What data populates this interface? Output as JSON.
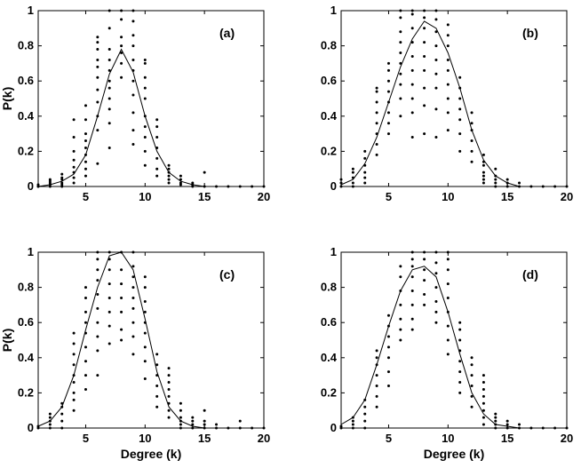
{
  "chart_data": [
    {
      "type": "scatter",
      "panel_label": "(a)",
      "xlabel": "",
      "ylabel": "P(k)",
      "xlim": [
        1,
        20
      ],
      "ylim": [
        0,
        1
      ],
      "xticks": [
        5,
        10,
        15,
        20
      ],
      "yticks": [
        0,
        0.2,
        0.4,
        0.6,
        0.8,
        1
      ],
      "xtick_labels": [
        "5",
        "10",
        "15",
        "20"
      ],
      "ytick_labels": [
        "0",
        "0.2",
        "0.4",
        "0.6",
        "0.8",
        "1"
      ],
      "fit_line": {
        "x": [
          1,
          2,
          3,
          4,
          5,
          6,
          7,
          8,
          9,
          10,
          11,
          12,
          13,
          14,
          15,
          16,
          17,
          18,
          19,
          20
        ],
        "y": [
          0.0,
          0.01,
          0.03,
          0.07,
          0.18,
          0.4,
          0.64,
          0.78,
          0.65,
          0.4,
          0.2,
          0.08,
          0.03,
          0.01,
          0.0,
          0.0,
          0.0,
          0.0,
          0.0,
          0.0
        ]
      },
      "points": [
        {
          "x": 1,
          "values": [
            0.0,
            0.0,
            0.01
          ]
        },
        {
          "x": 2,
          "values": [
            0.0,
            0.01,
            0.02,
            0.03,
            0.04
          ]
        },
        {
          "x": 3,
          "values": [
            0.0,
            0.01,
            0.02,
            0.04,
            0.05,
            0.07
          ]
        },
        {
          "x": 4,
          "values": [
            0.02,
            0.05,
            0.08,
            0.11,
            0.15,
            0.2,
            0.28,
            0.38
          ]
        },
        {
          "x": 5,
          "values": [
            0.06,
            0.1,
            0.14,
            0.18,
            0.22,
            0.26,
            0.3,
            0.38,
            0.46
          ]
        },
        {
          "x": 6,
          "values": [
            0.13,
            0.32,
            0.4,
            0.48,
            0.55,
            0.62,
            0.68,
            0.72,
            0.78,
            0.82,
            0.85
          ]
        },
        {
          "x": 7,
          "values": [
            0.22,
            0.36,
            0.44,
            0.5,
            0.56,
            0.6,
            0.66,
            0.72,
            0.78,
            0.9,
            1.0
          ]
        },
        {
          "x": 8,
          "values": [
            0.62,
            0.7,
            0.76,
            0.8,
            0.85,
            0.95,
            1.0
          ]
        },
        {
          "x": 9,
          "values": [
            0.24,
            0.32,
            0.42,
            0.52,
            0.6,
            0.66,
            0.72,
            0.8,
            0.86,
            0.94,
            1.0
          ]
        },
        {
          "x": 10,
          "values": [
            0.12,
            0.2,
            0.28,
            0.34,
            0.4,
            0.5,
            0.56,
            0.62,
            0.7,
            0.72
          ]
        },
        {
          "x": 11,
          "values": [
            0.06,
            0.1,
            0.16,
            0.22,
            0.28,
            0.34,
            0.38
          ]
        },
        {
          "x": 12,
          "values": [
            0.02,
            0.04,
            0.06,
            0.08,
            0.1,
            0.12
          ]
        },
        {
          "x": 13,
          "values": [
            0.01,
            0.02,
            0.04,
            0.06
          ]
        },
        {
          "x": 14,
          "values": [
            0.0,
            0.01,
            0.02
          ]
        },
        {
          "x": 15,
          "values": [
            0.0,
            0.08
          ]
        },
        {
          "x": 16,
          "values": [
            0.0
          ]
        },
        {
          "x": 17,
          "values": [
            0.0
          ]
        },
        {
          "x": 18,
          "values": [
            0.0
          ]
        },
        {
          "x": 19,
          "values": [
            0.0
          ]
        },
        {
          "x": 20,
          "values": [
            0.0
          ]
        }
      ]
    },
    {
      "type": "scatter",
      "panel_label": "(b)",
      "xlabel": "",
      "ylabel": "",
      "xlim": [
        1,
        20
      ],
      "ylim": [
        0,
        1
      ],
      "xticks": [
        5,
        10,
        15,
        20
      ],
      "yticks": [
        0,
        0.2,
        0.4,
        0.6,
        0.8,
        1
      ],
      "xtick_labels": [
        "5",
        "10",
        "15",
        "20"
      ],
      "ytick_labels": [
        "0",
        "0.2",
        "0.4",
        "0.6",
        "0.8",
        "1"
      ],
      "fit_line": {
        "x": [
          1,
          2,
          3,
          4,
          5,
          6,
          7,
          8,
          9,
          10,
          11,
          12,
          13,
          14,
          15,
          16,
          17,
          18,
          19,
          20
        ],
        "y": [
          0.01,
          0.04,
          0.13,
          0.28,
          0.48,
          0.68,
          0.84,
          0.94,
          0.9,
          0.76,
          0.56,
          0.32,
          0.15,
          0.06,
          0.02,
          0.0,
          0.0,
          0.0,
          0.0,
          0.0
        ]
      },
      "points": [
        {
          "x": 1,
          "values": [
            0.0,
            0.02,
            0.04
          ]
        },
        {
          "x": 2,
          "values": [
            0.0,
            0.02,
            0.05,
            0.08,
            0.1
          ]
        },
        {
          "x": 3,
          "values": [
            0.02,
            0.05,
            0.08,
            0.12,
            0.16,
            0.2
          ]
        },
        {
          "x": 4,
          "values": [
            0.18,
            0.24,
            0.3,
            0.36,
            0.42,
            0.48,
            0.54,
            0.56
          ]
        },
        {
          "x": 5,
          "values": [
            0.3,
            0.36,
            0.42,
            0.48,
            0.54,
            0.6,
            0.66,
            0.7
          ]
        },
        {
          "x": 6,
          "values": [
            0.4,
            0.5,
            0.58,
            0.64,
            0.7,
            0.76,
            0.82,
            0.88,
            0.96,
            1.0
          ]
        },
        {
          "x": 7,
          "values": [
            0.28,
            0.42,
            0.5,
            0.58,
            0.66,
            0.74,
            0.82,
            0.9,
            0.98,
            1.0
          ]
        },
        {
          "x": 8,
          "values": [
            0.3,
            0.46,
            0.56,
            0.66,
            0.74,
            0.82,
            0.9,
            0.96,
            1.0
          ]
        },
        {
          "x": 9,
          "values": [
            0.28,
            0.44,
            0.56,
            0.64,
            0.72,
            0.8,
            0.88,
            0.95,
            1.0
          ]
        },
        {
          "x": 10,
          "values": [
            0.32,
            0.42,
            0.5,
            0.58,
            0.66,
            0.72,
            0.8,
            0.86,
            0.92
          ]
        },
        {
          "x": 11,
          "values": [
            0.2,
            0.3,
            0.38,
            0.44,
            0.5,
            0.56,
            0.62
          ]
        },
        {
          "x": 12,
          "values": [
            0.14,
            0.2,
            0.26,
            0.32,
            0.36,
            0.42
          ]
        },
        {
          "x": 13,
          "values": [
            0.02,
            0.04,
            0.06,
            0.08,
            0.12,
            0.14,
            0.18
          ]
        },
        {
          "x": 14,
          "values": [
            0.0,
            0.02,
            0.04,
            0.06,
            0.1
          ]
        },
        {
          "x": 15,
          "values": [
            0.0,
            0.02,
            0.04
          ]
        },
        {
          "x": 16,
          "values": [
            0.0,
            0.02
          ]
        },
        {
          "x": 17,
          "values": [
            0.0
          ]
        },
        {
          "x": 18,
          "values": [
            0.0
          ]
        },
        {
          "x": 19,
          "values": [
            0.0
          ]
        },
        {
          "x": 20,
          "values": [
            0.0
          ]
        }
      ]
    },
    {
      "type": "scatter",
      "panel_label": "(c)",
      "xlabel": "Degree (k)",
      "ylabel": "P(k)",
      "xlim": [
        1,
        20
      ],
      "ylim": [
        0,
        1
      ],
      "xticks": [
        5,
        10,
        15,
        20
      ],
      "yticks": [
        0,
        0.2,
        0.4,
        0.6,
        0.8,
        1
      ],
      "xtick_labels": [
        "5",
        "10",
        "15",
        "20"
      ],
      "ytick_labels": [
        "0",
        "0.2",
        "0.4",
        "0.6",
        "0.8",
        "1"
      ],
      "fit_line": {
        "x": [
          1,
          2,
          3,
          4,
          5,
          6,
          7,
          8,
          9,
          10,
          11,
          12,
          13,
          14,
          15,
          16,
          17,
          18,
          19,
          20
        ],
        "y": [
          0.01,
          0.04,
          0.12,
          0.3,
          0.56,
          0.8,
          0.98,
          1.0,
          0.9,
          0.62,
          0.32,
          0.12,
          0.04,
          0.01,
          0.0,
          0.0,
          0.0,
          0.0,
          0.0,
          0.0
        ]
      },
      "points": [
        {
          "x": 1,
          "values": [
            0.0,
            0.01
          ]
        },
        {
          "x": 2,
          "values": [
            0.0,
            0.02,
            0.04,
            0.06,
            0.08
          ]
        },
        {
          "x": 3,
          "values": [
            0.0,
            0.04,
            0.08,
            0.12,
            0.14
          ]
        },
        {
          "x": 4,
          "values": [
            0.1,
            0.16,
            0.2,
            0.26,
            0.3,
            0.36,
            0.42,
            0.48,
            0.54
          ]
        },
        {
          "x": 5,
          "values": [
            0.22,
            0.3,
            0.38,
            0.46,
            0.54,
            0.6,
            0.66,
            0.74,
            0.8
          ]
        },
        {
          "x": 6,
          "values": [
            0.3,
            0.44,
            0.52,
            0.6,
            0.68,
            0.76,
            0.84,
            0.9,
            0.96,
            1.0
          ]
        },
        {
          "x": 7,
          "values": [
            0.48,
            0.58,
            0.66,
            0.74,
            0.82,
            0.9,
            0.96,
            1.0
          ]
        },
        {
          "x": 8,
          "values": [
            0.5,
            0.56,
            0.66,
            0.74,
            0.82,
            0.9,
            1.0
          ]
        },
        {
          "x": 9,
          "values": [
            0.42,
            0.52,
            0.6,
            0.68,
            0.74,
            0.8,
            0.86,
            0.92,
            1.0
          ]
        },
        {
          "x": 10,
          "values": [
            0.28,
            0.38,
            0.46,
            0.54,
            0.6,
            0.66,
            0.72,
            0.8,
            0.86
          ]
        },
        {
          "x": 11,
          "values": [
            0.12,
            0.18,
            0.24,
            0.3,
            0.36,
            0.42
          ]
        },
        {
          "x": 12,
          "values": [
            0.06,
            0.1,
            0.14,
            0.18,
            0.22,
            0.26,
            0.3,
            0.34
          ]
        },
        {
          "x": 13,
          "values": [
            0.0,
            0.02,
            0.04,
            0.06,
            0.1,
            0.14
          ]
        },
        {
          "x": 14,
          "values": [
            0.0,
            0.02,
            0.04,
            0.06
          ]
        },
        {
          "x": 15,
          "values": [
            0.0,
            0.02,
            0.04,
            0.1
          ]
        },
        {
          "x": 16,
          "values": [
            0.0,
            0.02
          ]
        },
        {
          "x": 17,
          "values": [
            0.0
          ]
        },
        {
          "x": 18,
          "values": [
            0.0,
            0.04
          ]
        },
        {
          "x": 19,
          "values": [
            0.0
          ]
        },
        {
          "x": 20,
          "values": [
            0.0
          ]
        }
      ]
    },
    {
      "type": "scatter",
      "panel_label": "(d)",
      "xlabel": "Degree (k)",
      "ylabel": "",
      "xlim": [
        1,
        20
      ],
      "ylim": [
        0,
        1
      ],
      "xticks": [
        5,
        10,
        15,
        20
      ],
      "yticks": [
        0,
        0.2,
        0.4,
        0.6,
        0.8,
        1
      ],
      "xtick_labels": [
        "5",
        "10",
        "15",
        "20"
      ],
      "ytick_labels": [
        "0",
        "0.2",
        "0.4",
        "0.6",
        "0.8",
        "1"
      ],
      "fit_line": {
        "x": [
          1,
          2,
          3,
          4,
          5,
          6,
          7,
          8,
          9,
          10,
          11,
          12,
          13,
          14,
          15,
          16,
          17,
          18,
          19,
          20
        ],
        "y": [
          0.02,
          0.06,
          0.16,
          0.36,
          0.58,
          0.78,
          0.9,
          0.92,
          0.86,
          0.66,
          0.42,
          0.2,
          0.08,
          0.02,
          0.01,
          0.0,
          0.0,
          0.0,
          0.0,
          0.0
        ]
      },
      "points": [
        {
          "x": 1,
          "values": [
            0.0,
            0.01
          ]
        },
        {
          "x": 2,
          "values": [
            0.0,
            0.02,
            0.04,
            0.06
          ]
        },
        {
          "x": 3,
          "values": [
            0.0,
            0.04,
            0.08,
            0.12,
            0.16
          ]
        },
        {
          "x": 4,
          "values": [
            0.12,
            0.18,
            0.24,
            0.3,
            0.36,
            0.4,
            0.44
          ]
        },
        {
          "x": 5,
          "values": [
            0.24,
            0.32,
            0.4,
            0.46,
            0.52,
            0.58,
            0.64
          ]
        },
        {
          "x": 6,
          "values": [
            0.5,
            0.56,
            0.62,
            0.7,
            0.78,
            0.86,
            0.92
          ]
        },
        {
          "x": 7,
          "values": [
            0.56,
            0.62,
            0.7,
            0.78,
            0.86,
            0.92,
            0.96,
            1.0
          ]
        },
        {
          "x": 8,
          "values": [
            0.7,
            0.76,
            0.84,
            0.9,
            0.96,
            1.0
          ]
        },
        {
          "x": 9,
          "values": [
            0.6,
            0.66,
            0.72,
            0.8,
            0.88,
            0.94,
            1.0
          ]
        },
        {
          "x": 10,
          "values": [
            0.42,
            0.5,
            0.58,
            0.66,
            0.74,
            0.82,
            0.9,
            0.96,
            1.0
          ]
        },
        {
          "x": 11,
          "values": [
            0.2,
            0.26,
            0.32,
            0.38,
            0.44,
            0.5,
            0.56,
            0.6
          ]
        },
        {
          "x": 12,
          "values": [
            0.12,
            0.18,
            0.24,
            0.3,
            0.36,
            0.4
          ]
        },
        {
          "x": 13,
          "values": [
            0.02,
            0.06,
            0.1,
            0.14,
            0.18,
            0.22,
            0.26,
            0.3
          ]
        },
        {
          "x": 14,
          "values": [
            0.0,
            0.02,
            0.04,
            0.06,
            0.08
          ]
        },
        {
          "x": 15,
          "values": [
            0.0,
            0.02,
            0.04
          ]
        },
        {
          "x": 16,
          "values": [
            0.0,
            0.02
          ]
        },
        {
          "x": 17,
          "values": [
            0.0
          ]
        },
        {
          "x": 18,
          "values": [
            0.0
          ]
        },
        {
          "x": 19,
          "values": [
            0.0
          ]
        },
        {
          "x": 20,
          "values": [
            0.0
          ]
        }
      ]
    }
  ]
}
